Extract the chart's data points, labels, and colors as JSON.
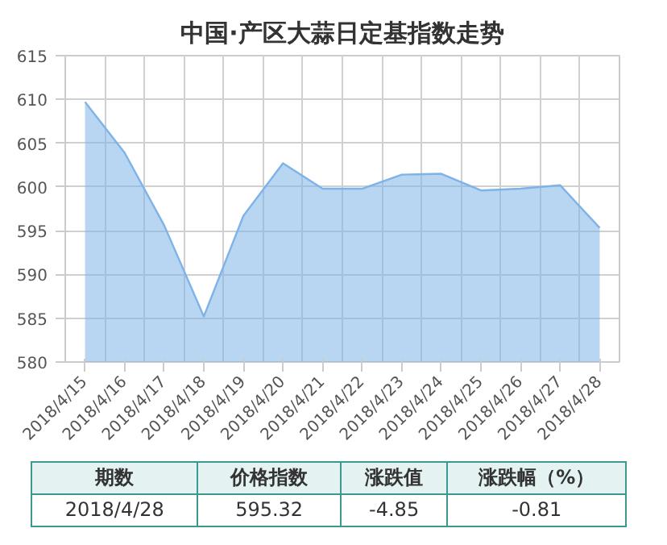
{
  "chart_data": {
    "type": "area",
    "title": "中国·产区大蒜日定基指数走势",
    "categories": [
      "2018/4/15",
      "2018/4/16",
      "2018/4/17",
      "2018/4/18",
      "2018/4/19",
      "2018/4/20",
      "2018/4/21",
      "2018/4/22",
      "2018/4/23",
      "2018/4/24",
      "2018/4/25",
      "2018/4/26",
      "2018/4/27",
      "2018/4/28"
    ],
    "series": [
      {
        "color": "#7eb3e8",
        "values": [
          609.7,
          603.9,
          595.6,
          585.2,
          596.7,
          602.7,
          599.8,
          599.8,
          601.4,
          601.5,
          599.6,
          599.8,
          600.2,
          595.32
        ]
      }
    ],
    "ylim": [
      580,
      615
    ],
    "yticks": [
      580,
      585,
      590,
      595,
      600,
      605,
      610,
      615
    ],
    "grid": true,
    "marker": "none",
    "annotations": [
      "期数",
      "价格指数",
      "涨跌值",
      "涨跌幅（%）",
      "2018/4/28",
      "595.32",
      "-4.85",
      "-0.81"
    ]
  }
}
